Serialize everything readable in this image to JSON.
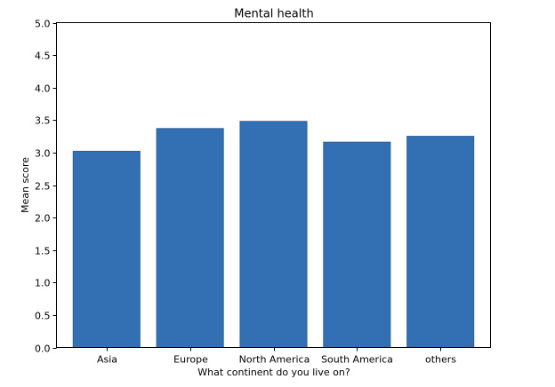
{
  "chart_data": {
    "type": "bar",
    "title": "Mental health",
    "xlabel": "What continent do you live on?",
    "ylabel": "Mean score",
    "categories": [
      "Asia",
      "Europe",
      "North America",
      "South America",
      "others"
    ],
    "values": [
      3.02,
      3.37,
      3.48,
      3.16,
      3.25
    ],
    "ylim": [
      0,
      5
    ],
    "yticks": [
      "0.0",
      "0.5",
      "1.0",
      "1.5",
      "2.0",
      "2.5",
      "3.0",
      "3.5",
      "4.0",
      "4.5",
      "5.0"
    ],
    "grid": false,
    "bar_color": "#3370b3",
    "bar_edge_color": "#2a5f99"
  }
}
